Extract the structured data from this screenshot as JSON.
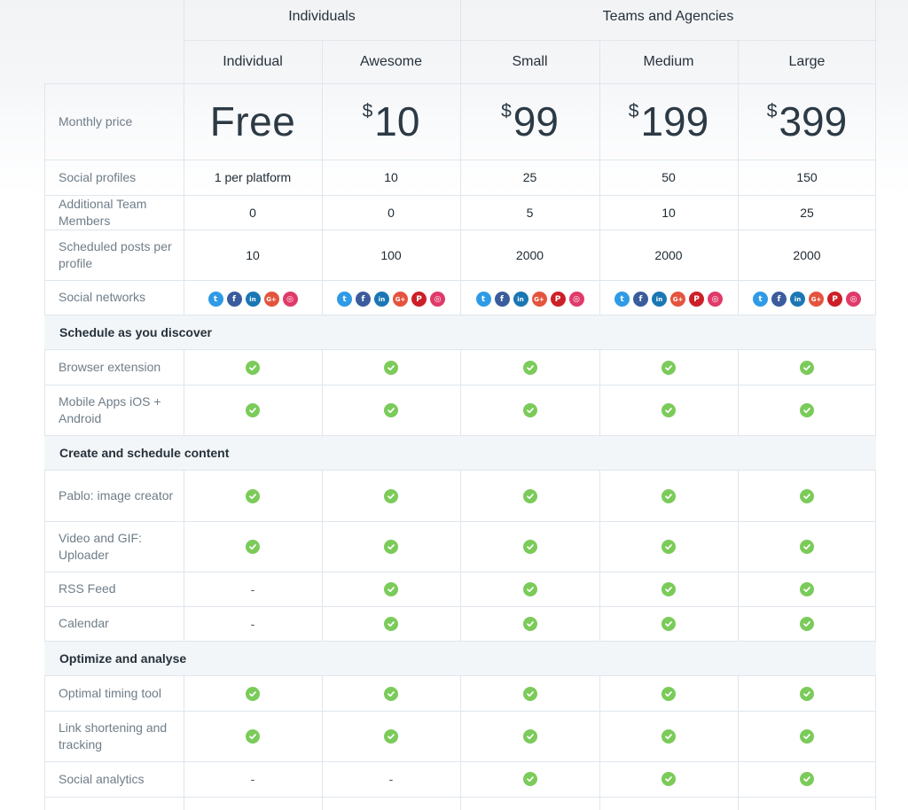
{
  "groups": {
    "individuals": "Individuals",
    "teams": "Teams and Agencies"
  },
  "plans": [
    {
      "name": "Individual",
      "price_text": "Free",
      "currency": "",
      "social_profiles": "1 per platform",
      "team_members": "0",
      "scheduled_posts": "10"
    },
    {
      "name": "Awesome",
      "price_text": "10",
      "currency": "$",
      "social_profiles": "10",
      "team_members": "0",
      "scheduled_posts": "100"
    },
    {
      "name": "Small",
      "price_text": "99",
      "currency": "$",
      "social_profiles": "25",
      "team_members": "5",
      "scheduled_posts": "2000"
    },
    {
      "name": "Medium",
      "price_text": "199",
      "currency": "$",
      "social_profiles": "50",
      "team_members": "10",
      "scheduled_posts": "2000"
    },
    {
      "name": "Large",
      "price_text": "399",
      "currency": "$",
      "social_profiles": "150",
      "team_members": "25",
      "scheduled_posts": "2000"
    }
  ],
  "row_labels": {
    "monthly_price": "Monthly price",
    "social_profiles": "Social profiles",
    "team_members": "Additional Team Members",
    "scheduled_posts": "Scheduled posts per profile",
    "social_networks": "Social networks"
  },
  "social_network_icons": {
    "individual": [
      "twitter-icon",
      "facebook-icon",
      "linkedin-icon",
      "google-plus-icon",
      "instagram-icon"
    ],
    "others": [
      "twitter-icon",
      "facebook-icon",
      "linkedin-icon",
      "google-plus-icon",
      "pinterest-icon",
      "instagram-icon"
    ]
  },
  "sections": [
    {
      "title": "Schedule as you discover",
      "features": [
        {
          "label": "Browser extension",
          "values": [
            "check",
            "check",
            "check",
            "check",
            "check"
          ]
        },
        {
          "label": "Mobile Apps iOS + Android",
          "values": [
            "check",
            "check",
            "check",
            "check",
            "check"
          ]
        }
      ]
    },
    {
      "title": "Create and schedule content",
      "features": [
        {
          "label": "Pablo: image creator",
          "values": [
            "check",
            "check",
            "check",
            "check",
            "check"
          ]
        },
        {
          "label": "Video and GIF: Uploader",
          "values": [
            "check",
            "check",
            "check",
            "check",
            "check"
          ]
        },
        {
          "label": "RSS Feed",
          "values": [
            "-",
            "check",
            "check",
            "check",
            "check"
          ]
        },
        {
          "label": "Calendar",
          "values": [
            "-",
            "check",
            "check",
            "check",
            "check"
          ]
        }
      ]
    },
    {
      "title": "Optimize and analyse",
      "features": [
        {
          "label": "Optimal timing tool",
          "values": [
            "check",
            "check",
            "check",
            "check",
            "check"
          ]
        },
        {
          "label": "Link shortening and tracking",
          "values": [
            "check",
            "check",
            "check",
            "check",
            "check"
          ]
        },
        {
          "label": "Social analytics",
          "values": [
            "-",
            "-",
            "check",
            "check",
            "check"
          ]
        }
      ]
    }
  ],
  "colors": {
    "check": "#7bcb5a",
    "section_bg": "#f3f6f8",
    "border": "#dfe6ec",
    "twitter": "#2f9be6",
    "facebook": "#3b5c9c",
    "linkedin": "#1a77b4",
    "google_plus": "#e4543e",
    "pinterest": "#cc1f28",
    "instagram": "#e03a6b"
  }
}
